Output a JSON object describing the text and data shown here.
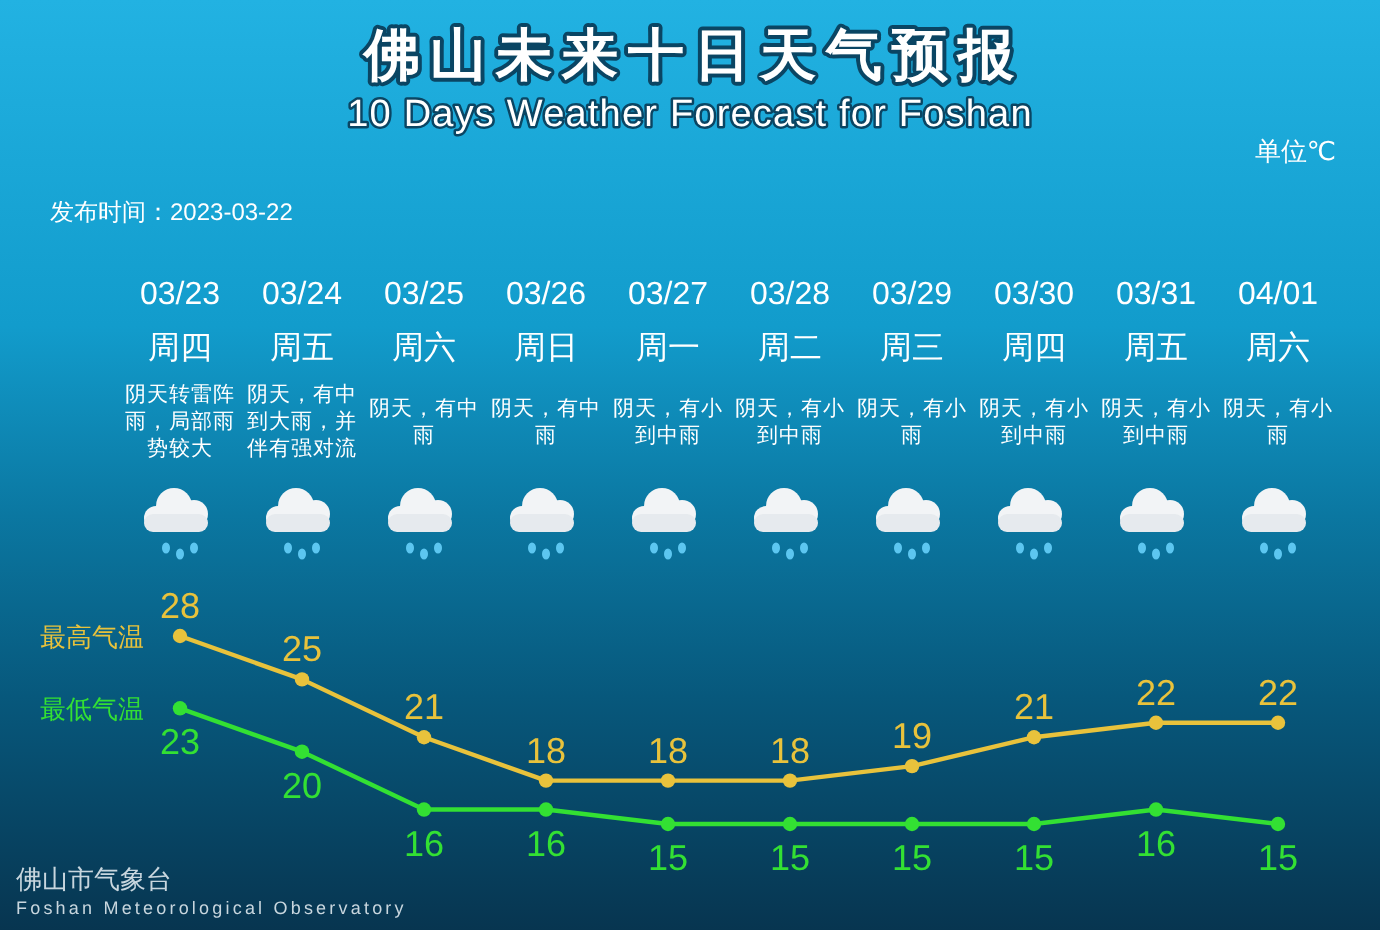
{
  "chart_data": {
    "type": "line",
    "title": "佛山未来十日天气预报",
    "subtitle": "10 Days Weather Forecast for Foshan",
    "categories": [
      "03/23",
      "03/24",
      "03/25",
      "03/26",
      "03/27",
      "03/28",
      "03/29",
      "03/30",
      "03/31",
      "04/01"
    ],
    "series": [
      {
        "name": "最高气温",
        "color": "#e8c23c",
        "values": [
          28,
          25,
          21,
          18,
          18,
          18,
          19,
          21,
          22,
          22
        ]
      },
      {
        "name": "最低气温",
        "color": "#33e033",
        "values": [
          23,
          20,
          16,
          16,
          15,
          15,
          15,
          15,
          16,
          15
        ]
      }
    ],
    "marker": "circle",
    "data_labels": true,
    "annotations": [
      "单位℃",
      "发布时间：2023-03-22",
      "周四",
      "周五",
      "周六",
      "周日",
      "周一",
      "周二",
      "周三",
      "周四",
      "周五",
      "周六",
      "阴天转雷阵雨，局部雨势较大",
      "阴天，有中到大雨，并伴有强对流",
      "阴天，有中雨",
      "阴天，有中雨",
      "阴天，有小到中雨",
      "阴天，有小到中雨",
      "阴天，有小雨",
      "阴天，有小到中雨",
      "阴天，有小到中雨",
      "阴天，有小雨",
      "佛山市气象台",
      "Foshan Meteorological Observatory"
    ]
  }
}
